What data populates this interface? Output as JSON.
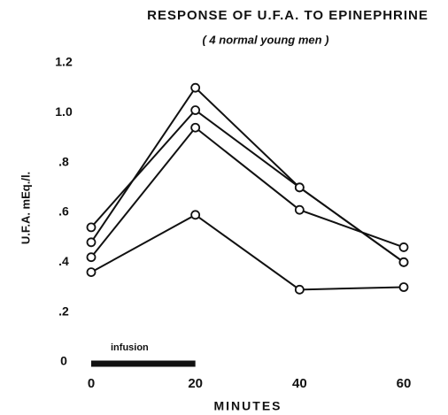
{
  "chart_data": {
    "type": "line",
    "title": "RESPONSE OF U.F.A. TO EPINEPHRINE",
    "subtitle": "( 4 normal young men )",
    "x_label": "MINUTES",
    "y_label": "U.F.A. mEq./l.",
    "x": [
      0,
      20,
      40,
      60
    ],
    "series": [
      {
        "color": "#111111",
        "values": [
          0.54,
          1.01,
          0.7,
          0.4
        ]
      },
      {
        "color": "#111111",
        "values": [
          0.48,
          1.1,
          0.7,
          0.4
        ]
      },
      {
        "color": "#111111",
        "values": [
          0.42,
          0.94,
          0.61,
          0.46
        ]
      },
      {
        "color": "#111111",
        "values": [
          0.36,
          0.59,
          0.29,
          0.3
        ]
      }
    ],
    "annotations": [
      {
        "text": "infusion",
        "x": [
          0,
          20
        ]
      }
    ],
    "xlim": [
      0,
      60
    ],
    "xticks": [
      0,
      20,
      40,
      60
    ],
    "ylim": [
      0,
      1.2
    ],
    "yticks": [
      0,
      {
        "value": 0.2,
        "label": ".2"
      },
      {
        "value": 0.4,
        "label": ".4"
      },
      {
        "value": 0.6,
        "label": ".6"
      },
      {
        "value": 0.8,
        "label": ".8"
      },
      {
        "value": 1.0,
        "label": "1.0"
      },
      1.2
    ],
    "grid": false
  }
}
